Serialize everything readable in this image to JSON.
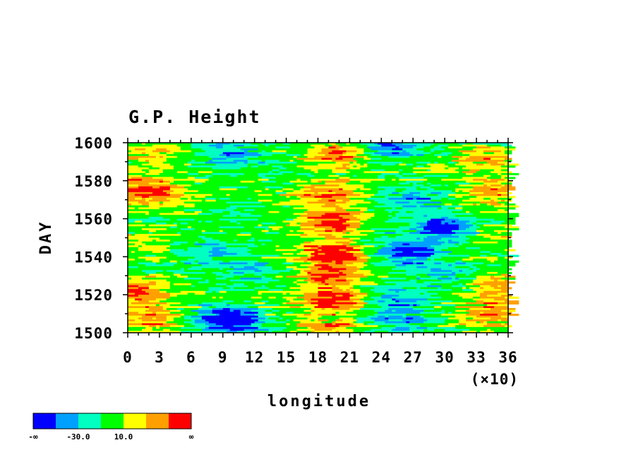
{
  "chart_data": {
    "type": "heatmap",
    "title": "G.P. Height",
    "xlabel": "longitude",
    "xlabel_multiplier": "(×10)",
    "ylabel": "DAY",
    "x_ticks": [
      "0",
      "3",
      "6",
      "9",
      "12",
      "15",
      "18",
      "21",
      "24",
      "27",
      "30",
      "33",
      "36"
    ],
    "x_tick_values": [
      0,
      3,
      6,
      9,
      12,
      15,
      18,
      21,
      24,
      27,
      30,
      33,
      36
    ],
    "y_ticks": [
      "1500",
      "1520",
      "1540",
      "1560",
      "1580",
      "1600"
    ],
    "y_tick_values": [
      1500,
      1520,
      1540,
      1560,
      1580,
      1600
    ],
    "xlim": [
      0,
      36
    ],
    "ylim": [
      1500,
      1600
    ],
    "colorbar": {
      "colors": [
        "#0000ff",
        "#00a0ff",
        "#00ffc0",
        "#00ff00",
        "#ffff00",
        "#ffa000",
        "#ff0000"
      ],
      "labels": [
        "-∞",
        "-30.0",
        "10.0",
        "∞"
      ],
      "label_positions": [
        0,
        2,
        4,
        7
      ]
    },
    "anomaly_features": [
      {
        "x": 2,
        "y": 1525,
        "value": 55
      },
      {
        "x": 1,
        "y": 1578,
        "value": 45
      },
      {
        "x": 2.5,
        "y": 1592,
        "value": 40
      },
      {
        "x": 2,
        "y": 1552,
        "value": 15
      },
      {
        "x": 2,
        "y": 1505,
        "value": 25
      },
      {
        "x": 8.5,
        "y": 1592,
        "value": -25
      },
      {
        "x": 10,
        "y": 1594,
        "value": -55
      },
      {
        "x": 9.5,
        "y": 1507,
        "value": -40
      },
      {
        "x": 8,
        "y": 1558,
        "value": -30
      },
      {
        "x": 12,
        "y": 1568,
        "value": -20
      },
      {
        "x": 11,
        "y": 1535,
        "value": -15
      },
      {
        "x": 19.5,
        "y": 1583,
        "value": 55
      },
      {
        "x": 19,
        "y": 1570,
        "value": 50
      },
      {
        "x": 19.5,
        "y": 1558,
        "value": 60
      },
      {
        "x": 19.5,
        "y": 1542,
        "value": 55
      },
      {
        "x": 19,
        "y": 1526,
        "value": 40
      },
      {
        "x": 20,
        "y": 1505,
        "value": 45
      },
      {
        "x": 19,
        "y": 1598,
        "value": 35
      },
      {
        "x": 15,
        "y": 1515,
        "value": -10
      },
      {
        "x": 26.5,
        "y": 1558,
        "value": -55
      },
      {
        "x": 30,
        "y": 1545,
        "value": -60
      },
      {
        "x": 27,
        "y": 1530,
        "value": -40
      },
      {
        "x": 25.5,
        "y": 1582,
        "value": -35
      },
      {
        "x": 25.5,
        "y": 1593,
        "value": -30
      },
      {
        "x": 24.5,
        "y": 1503,
        "value": -45
      },
      {
        "x": 30,
        "y": 1570,
        "value": -25
      },
      {
        "x": 34.5,
        "y": 1590,
        "value": 45
      },
      {
        "x": 35,
        "y": 1575,
        "value": 40
      },
      {
        "x": 35,
        "y": 1525,
        "value": 35
      },
      {
        "x": 35,
        "y": 1548,
        "value": 15
      },
      {
        "x": 34,
        "y": 1508,
        "value": 30
      },
      {
        "x": 24,
        "y": 1545,
        "value": -10
      }
    ]
  }
}
